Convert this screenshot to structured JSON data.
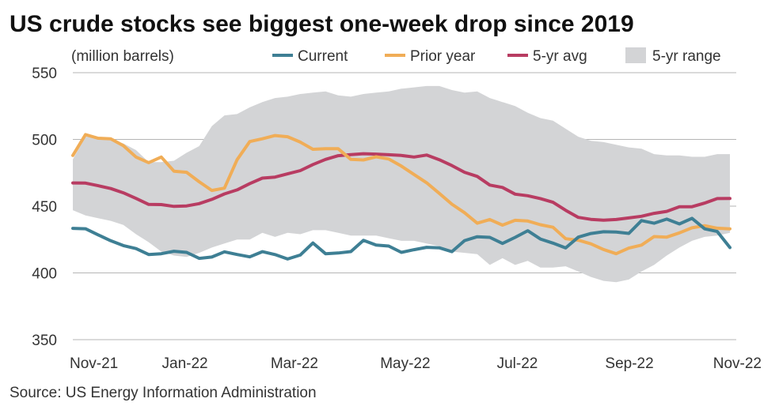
{
  "chart_data": {
    "type": "line",
    "title": "US crude stocks see biggest one-week drop since 2019",
    "subtitle": "(million barrels)",
    "source": "Source: US Energy Information Administration",
    "ylim": [
      350,
      550
    ],
    "yticks": [
      350,
      400,
      450,
      500,
      550
    ],
    "xlim": [
      0,
      51
    ],
    "xticks": [
      {
        "x": 0,
        "label": "Nov-21"
      },
      {
        "x": 8.7,
        "label": "Jan-22"
      },
      {
        "x": 17.2,
        "label": "Mar-22"
      },
      {
        "x": 25.8,
        "label": "May-22"
      },
      {
        "x": 34.5,
        "label": "Jul-22"
      },
      {
        "x": 43.2,
        "label": "Sep-22"
      },
      {
        "x": 51.0,
        "label": "Nov-22"
      }
    ],
    "colors": {
      "current": "#3e7f94",
      "prior": "#f0ad57",
      "avg": "#b83c62",
      "range": "#d3d4d6"
    },
    "legend": [
      {
        "key": "current",
        "label": "Current",
        "kind": "line"
      },
      {
        "key": "prior",
        "label": "Prior year",
        "kind": "line"
      },
      {
        "key": "avg",
        "label": "5-yr avg",
        "kind": "line"
      },
      {
        "key": "range",
        "label": "5-yr range",
        "kind": "box"
      }
    ],
    "series": [
      {
        "name": "Current",
        "key": "current",
        "values": [
          433.4,
          433.1,
          428.5,
          424.1,
          420.5,
          418.2,
          413.8,
          414.4,
          416.2,
          415.4,
          410.9,
          411.9,
          415.8,
          413.8,
          412.0,
          415.9,
          413.7,
          410.4,
          413.4,
          422.4,
          414.4,
          414.9,
          416.0,
          424.4,
          420.8,
          420.1,
          415.4,
          417.4,
          419.2,
          418.8,
          415.9,
          424.2,
          427.1,
          426.6,
          422.1,
          426.6,
          431.6,
          425.4,
          422.3,
          418.7,
          426.8,
          429.5,
          430.8,
          430.6,
          429.6,
          439.2,
          437.2,
          440.3,
          436.7,
          440.9,
          433.0,
          431.0,
          419.0
        ]
      },
      {
        "name": "Prior year",
        "key": "prior",
        "values": [
          488.0,
          503.6,
          500.9,
          500.5,
          495.3,
          486.8,
          482.6,
          486.8,
          476.2,
          475.4,
          468.3,
          461.8,
          463.5,
          484.8,
          498.4,
          500.5,
          502.9,
          502.0,
          498.0,
          492.6,
          493.0,
          493.0,
          485.0,
          484.6,
          487.0,
          485.3,
          480.0,
          473.7,
          467.5,
          459.6,
          451.5,
          445.1,
          437.2,
          440.0,
          435.8,
          439.4,
          438.9,
          436.1,
          434.2,
          425.6,
          424.5,
          421.8,
          417.5,
          414.4,
          418.6,
          420.8,
          427.2,
          426.8,
          430.0,
          433.8,
          435.4,
          433.5,
          433.0
        ]
      },
      {
        "name": "5-yr avg",
        "key": "avg",
        "values": [
          467.4,
          467.3,
          465.3,
          463.2,
          460.0,
          455.8,
          451.3,
          451.2,
          449.8,
          450.2,
          451.9,
          455.1,
          459.2,
          462.2,
          466.9,
          471.0,
          471.8,
          474.2,
          476.6,
          481.2,
          485.0,
          487.8,
          488.6,
          489.3,
          489.0,
          488.5,
          488.0,
          486.8,
          488.3,
          484.8,
          480.4,
          475.4,
          472.3,
          465.8,
          464.0,
          459.0,
          457.8,
          455.7,
          452.9,
          446.9,
          441.6,
          440.1,
          439.5,
          440.0,
          441.2,
          442.4,
          444.6,
          446.1,
          449.6,
          449.6,
          452.3,
          455.7,
          455.8
        ]
      },
      {
        "name": "5-yr range high",
        "key": "range_high",
        "values": [
          485.0,
          502.0,
          502.0,
          500.0,
          497.0,
          492.0,
          483.0,
          483.0,
          484.0,
          490.0,
          495.0,
          510.0,
          518.0,
          519.0,
          524.0,
          528.0,
          531.0,
          532.0,
          534.0,
          535.0,
          536.0,
          533.0,
          532.0,
          534.0,
          535.0,
          536.0,
          538.0,
          539.0,
          540.0,
          540.0,
          537.0,
          535.0,
          536.0,
          531.0,
          528.0,
          525.0,
          520.0,
          516.0,
          514.0,
          508.0,
          502.0,
          499.0,
          498.0,
          496.0,
          494.0,
          493.0,
          489.0,
          488.0,
          488.0,
          487.0,
          487.0,
          489.0,
          489.0
        ]
      },
      {
        "name": "5-yr range low",
        "key": "range_low",
        "values": [
          447.0,
          443.0,
          441.0,
          439.0,
          436.0,
          429.0,
          423.0,
          416.0,
          413.0,
          412.0,
          415.0,
          419.0,
          422.0,
          425.0,
          425.0,
          430.0,
          427.0,
          430.0,
          429.0,
          432.0,
          432.0,
          430.0,
          428.0,
          428.0,
          428.0,
          426.0,
          424.0,
          424.0,
          422.0,
          420.0,
          416.0,
          415.0,
          414.0,
          406.0,
          411.0,
          406.0,
          409.0,
          404.0,
          404.0,
          405.0,
          401.0,
          397.0,
          394.0,
          393.0,
          395.0,
          401.0,
          406.0,
          413.0,
          419.0,
          424.0,
          427.0,
          428.0,
          430.0
        ]
      }
    ]
  }
}
